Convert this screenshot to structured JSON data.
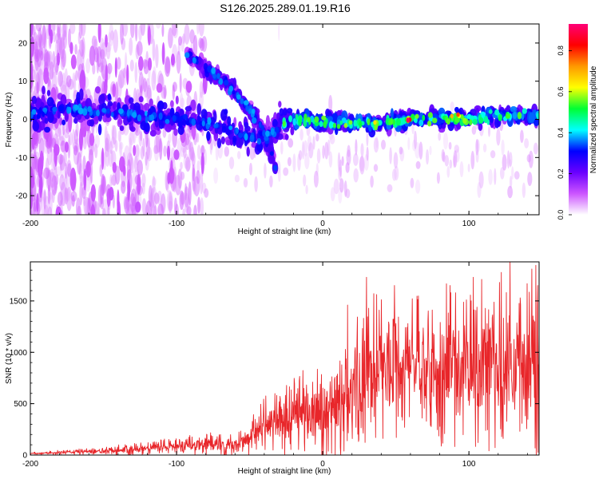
{
  "title": "S126.2025.289.01.19.R16",
  "colors": {
    "snr_line": "#e8262a",
    "axis": "#000000",
    "spectro_core": "#1fd6e6",
    "spectro_mid": "#5a1ee0",
    "spectro_edge": "#d7c2f4"
  },
  "chart_data": [
    {
      "type": "heatmap",
      "panel": "spectrogram",
      "xlabel": "Height of straight line (km)",
      "ylabel": "Frequency (Hz)",
      "xlim": [
        -200,
        148
      ],
      "ylim": [
        -25,
        25
      ],
      "xticks": [
        -200,
        -100,
        0,
        100
      ],
      "yticks": [
        -20,
        -10,
        0,
        10,
        20
      ],
      "colorbar": {
        "label": "Normalized spectral amplitude",
        "range": [
          0,
          0.93
        ],
        "ticks": [
          "0.0",
          "0.2",
          "0.4",
          "0.6",
          "0.8"
        ],
        "tick_values": [
          0,
          0.2,
          0.4,
          0.6,
          0.8
        ],
        "colormap": [
          "#ffffff",
          "#cc55ff",
          "#6a00ff",
          "#0000ff",
          "#00ffff",
          "#00ff33",
          "#ffff00",
          "#ff9900",
          "#ff0000",
          "#ff0077"
        ]
      },
      "ridges": [
        {
          "name": "main",
          "points": [
            [
              -200,
              1
            ],
            [
              -180,
              3
            ],
            [
              -160,
              2
            ],
            [
              -140,
              2
            ],
            [
              -120,
              1
            ],
            [
              -100,
              0
            ],
            [
              -80,
              -1
            ],
            [
              -60,
              -3
            ],
            [
              -45,
              -5
            ],
            [
              -35,
              -4
            ],
            [
              -30,
              -2
            ],
            [
              -20,
              0
            ],
            [
              -10,
              0
            ],
            [
              0,
              -1
            ],
            [
              10,
              -1
            ],
            [
              20,
              -1
            ],
            [
              40,
              -1
            ],
            [
              60,
              0
            ],
            [
              80,
              0
            ],
            [
              100,
              0
            ],
            [
              120,
              1
            ],
            [
              148,
              1
            ]
          ]
        },
        {
          "name": "branch",
          "points": [
            [
              -93,
              17
            ],
            [
              -85,
              15
            ],
            [
              -75,
              12
            ],
            [
              -65,
              9
            ],
            [
              -55,
              5
            ],
            [
              -45,
              0
            ],
            [
              -40,
              -4
            ],
            [
              -35,
              -9
            ],
            [
              -32,
              -13
            ]
          ]
        }
      ],
      "hotspots": [
        {
          "x": 58,
          "y": 0,
          "amp": 0.92
        },
        {
          "x": 90,
          "y": 1,
          "amp": 0.78
        },
        {
          "x": 36,
          "y": -1,
          "amp": 0.65
        }
      ]
    },
    {
      "type": "line",
      "panel": "snr",
      "xlabel": "Height of straight line (km)",
      "ylabel": "SNR (10 * v/v)",
      "xlim": [
        -200,
        148
      ],
      "ylim": [
        0,
        1880
      ],
      "xticks": [
        -200,
        -100,
        0,
        100
      ],
      "yticks": [
        0,
        500,
        1000,
        1500
      ],
      "series": [
        {
          "name": "SNR",
          "envelope_x": [
            -200,
            -150,
            -100,
            -80,
            -60,
            -50,
            -40,
            -30,
            -20,
            -10,
            0,
            10,
            20,
            30,
            40,
            60,
            80,
            100,
            120,
            148
          ],
          "envelope_mean": [
            15,
            40,
            90,
            110,
            100,
            160,
            280,
            340,
            380,
            420,
            420,
            480,
            650,
            820,
            870,
            900,
            880,
            880,
            880,
            880
          ],
          "envelope_spread": [
            10,
            30,
            70,
            90,
            100,
            130,
            220,
            280,
            320,
            400,
            420,
            480,
            520,
            560,
            560,
            560,
            620,
            650,
            700,
            760
          ],
          "peaks": [
            [
              17,
              1460
            ],
            [
              30,
              1730
            ],
            [
              49,
              1650
            ],
            [
              87,
              1650
            ],
            [
              103,
              1730
            ],
            [
              121,
              1680
            ],
            [
              128,
              1880
            ],
            [
              143,
              1810
            ],
            [
              147,
              1650
            ]
          ]
        }
      ]
    }
  ]
}
